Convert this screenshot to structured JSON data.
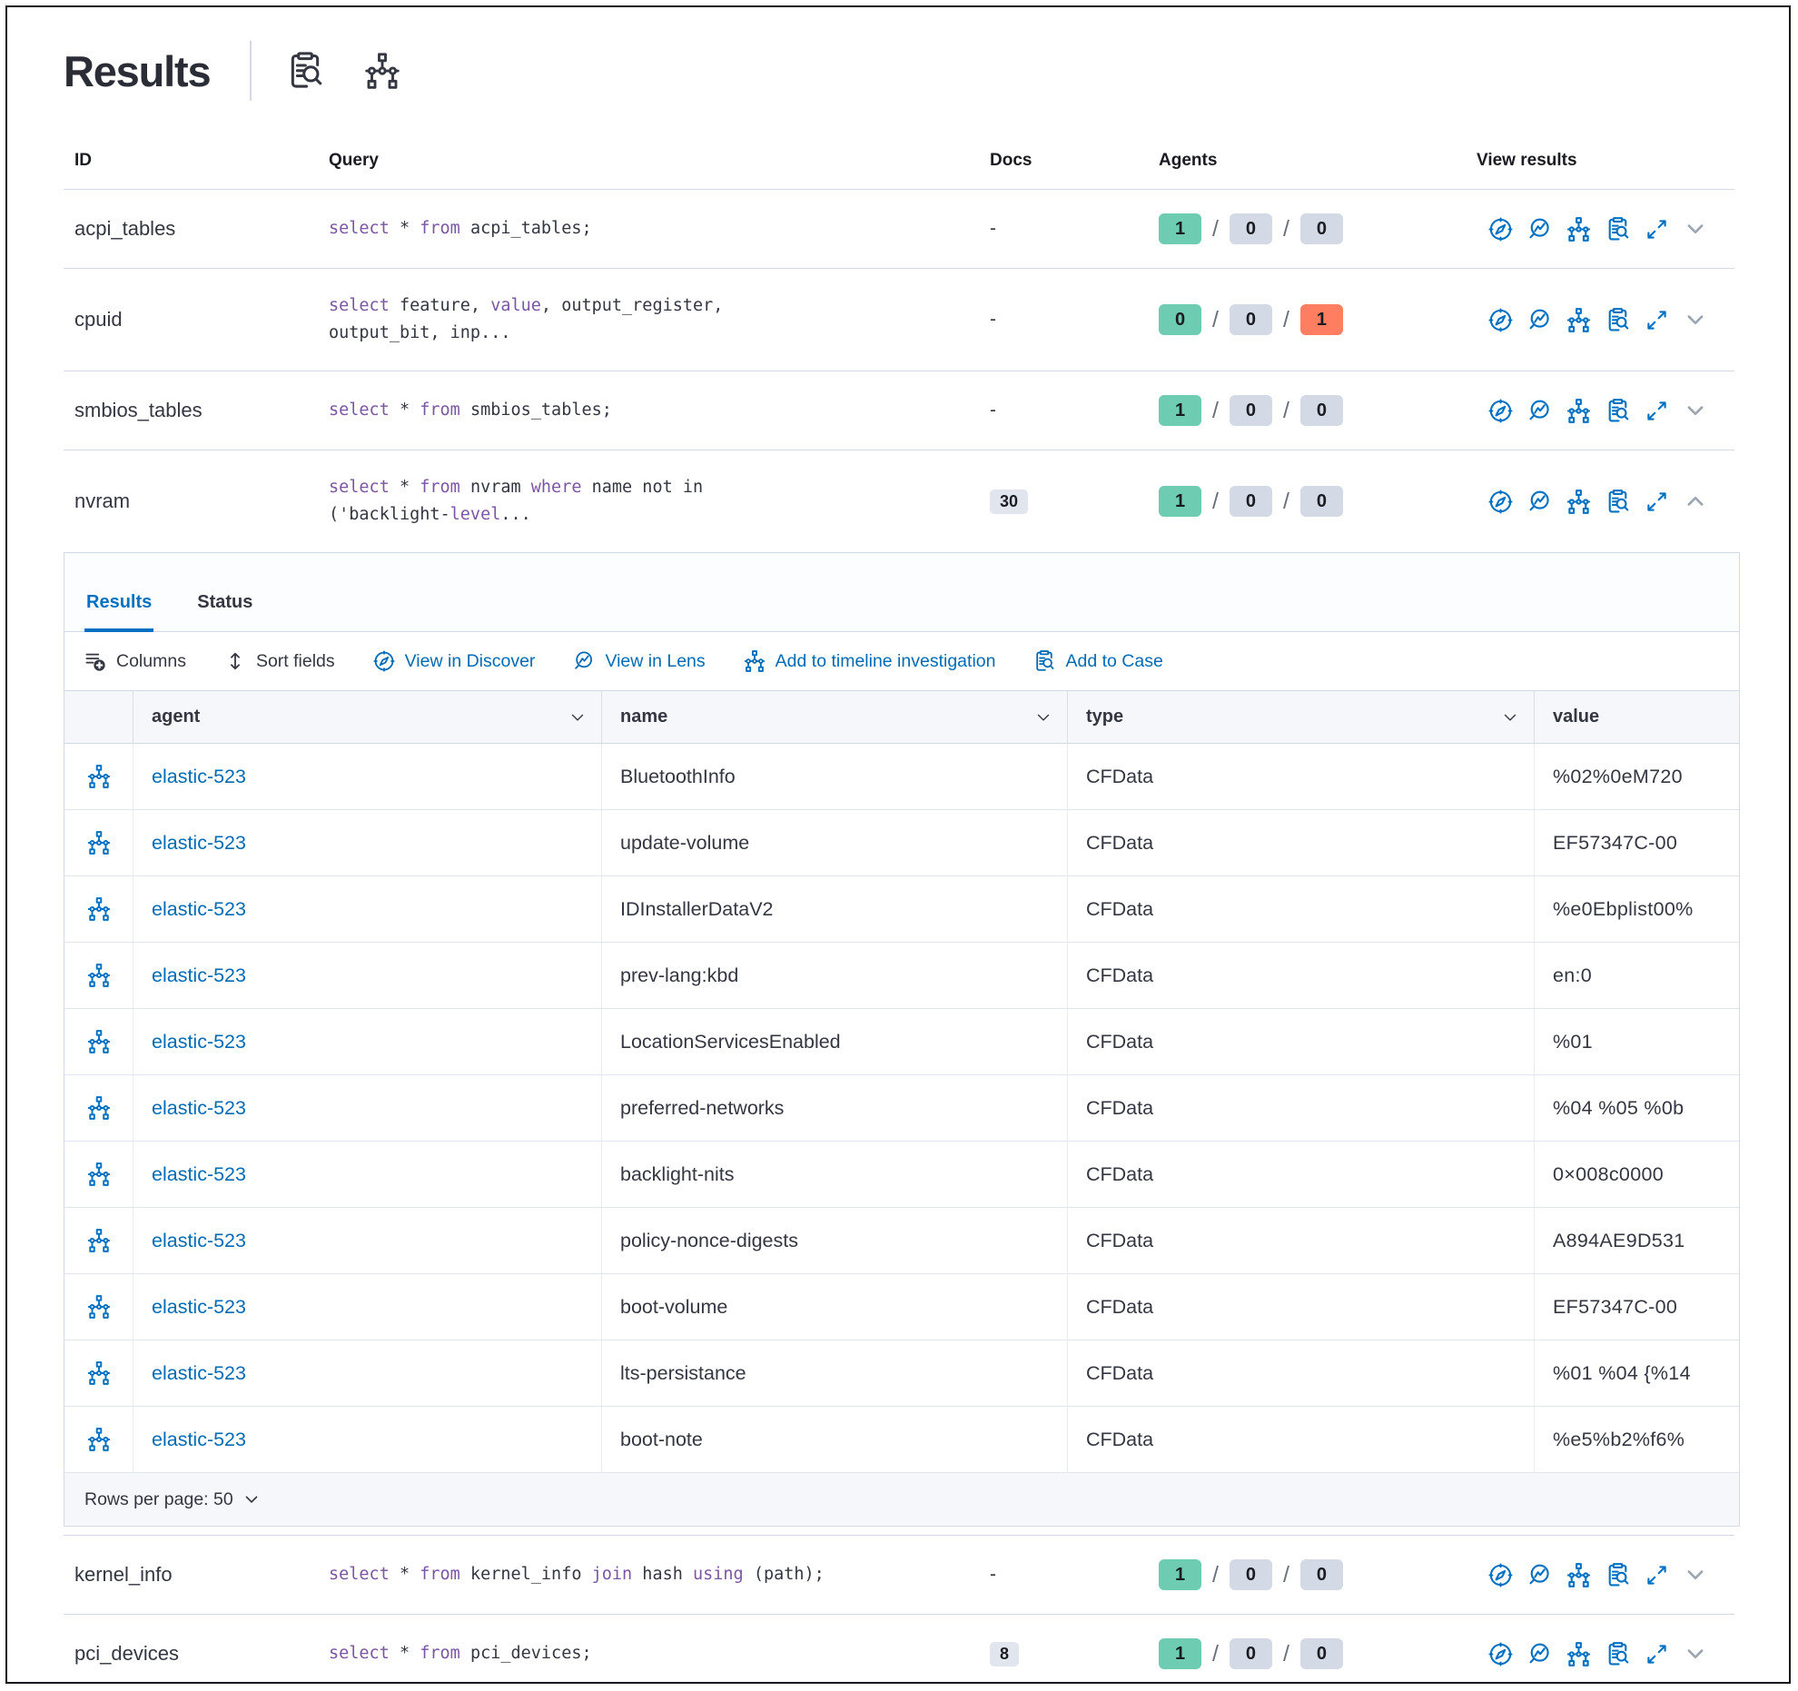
{
  "header": {
    "title": "Results",
    "icons": [
      {
        "name": "inspect-icon"
      },
      {
        "name": "timeline-icon"
      }
    ]
  },
  "colors": {
    "accent_blue": "#0071c2",
    "link_blue": "#006bb4",
    "keyword_purple": "#7a56a3",
    "badge_green": "#6dccb1",
    "badge_gray": "#d3dae6",
    "badge_red": "#ff7e62",
    "docs_badge_bg": "#e0e5ee",
    "border": "#d3dae6"
  },
  "outer_table": {
    "columns": [
      "ID",
      "Query",
      "Docs",
      "Agents",
      "View results"
    ],
    "rows": [
      {
        "id": "acpi_tables",
        "query": [
          {
            "t": "select",
            "k": true
          },
          {
            "t": " * "
          },
          {
            "t": "from",
            "k": true
          },
          {
            "t": " acpi_tables;"
          }
        ],
        "docs": "-",
        "docs_badge": false,
        "agents": [
          "1",
          "0",
          "0"
        ],
        "agent_colors": [
          "green",
          "gray",
          "gray"
        ],
        "expanded": false,
        "section": "top"
      },
      {
        "id": "cpuid",
        "query": [
          {
            "t": "select",
            "k": true
          },
          {
            "t": " feature, "
          },
          {
            "t": "value",
            "k": true
          },
          {
            "t": ", output_register,\noutput_bit, inp..."
          }
        ],
        "docs": "-",
        "docs_badge": false,
        "agents": [
          "0",
          "0",
          "1"
        ],
        "agent_colors": [
          "green",
          "gray",
          "red"
        ],
        "expanded": false,
        "section": "top"
      },
      {
        "id": "smbios_tables",
        "query": [
          {
            "t": "select",
            "k": true
          },
          {
            "t": " * "
          },
          {
            "t": "from",
            "k": true
          },
          {
            "t": " smbios_tables;"
          }
        ],
        "docs": "-",
        "docs_badge": false,
        "agents": [
          "1",
          "0",
          "0"
        ],
        "agent_colors": [
          "green",
          "gray",
          "gray"
        ],
        "expanded": false,
        "section": "top"
      },
      {
        "id": "nvram",
        "query": [
          {
            "t": "select",
            "k": true
          },
          {
            "t": " * "
          },
          {
            "t": "from",
            "k": true
          },
          {
            "t": " nvram "
          },
          {
            "t": "where",
            "k": true
          },
          {
            "t": " name not in\n('backlight-"
          },
          {
            "t": "level",
            "k": true
          },
          {
            "t": "..."
          }
        ],
        "docs": "30",
        "docs_badge": true,
        "agents": [
          "1",
          "0",
          "0"
        ],
        "agent_colors": [
          "green",
          "gray",
          "gray"
        ],
        "expanded": true,
        "section": "top"
      },
      {
        "id": "kernel_info",
        "query": [
          {
            "t": "select",
            "k": true
          },
          {
            "t": " * "
          },
          {
            "t": "from",
            "k": true
          },
          {
            "t": " kernel_info "
          },
          {
            "t": "join",
            "k": true
          },
          {
            "t": " hash "
          },
          {
            "t": "using",
            "k": true
          },
          {
            "t": " (path);"
          }
        ],
        "docs": "-",
        "docs_badge": false,
        "agents": [
          "1",
          "0",
          "0"
        ],
        "agent_colors": [
          "green",
          "gray",
          "gray"
        ],
        "expanded": false,
        "section": "bottom"
      },
      {
        "id": "pci_devices",
        "query": [
          {
            "t": "select",
            "k": true
          },
          {
            "t": " * "
          },
          {
            "t": "from",
            "k": true
          },
          {
            "t": " pci_devices;"
          }
        ],
        "docs": "8",
        "docs_badge": true,
        "agents": [
          "1",
          "0",
          "0"
        ],
        "agent_colors": [
          "green",
          "gray",
          "gray"
        ],
        "expanded": false,
        "section": "bottom"
      }
    ],
    "view_result_actions": [
      "view-in-discover",
      "view-in-lens",
      "add-to-timeline",
      "add-to-case",
      "expand-results"
    ]
  },
  "panel": {
    "tabs": [
      {
        "label": "Results",
        "active": true
      },
      {
        "label": "Status",
        "active": false
      }
    ],
    "toolbar": [
      {
        "label": "Columns",
        "icon": "columns",
        "style": "dark"
      },
      {
        "label": "Sort fields",
        "icon": "sort",
        "style": "dark"
      },
      {
        "label": "View in Discover",
        "icon": "compass",
        "style": "link"
      },
      {
        "label": "View in Lens",
        "icon": "lens",
        "style": "link"
      },
      {
        "label": "Add to timeline investigation",
        "icon": "timeline",
        "style": "link"
      },
      {
        "label": "Add to Case",
        "icon": "inspect",
        "style": "link"
      }
    ],
    "grid": {
      "columns": [
        "agent",
        "name",
        "type",
        "value"
      ],
      "rows": [
        {
          "agent": "elastic-523",
          "name": "BluetoothInfo",
          "type": "CFData",
          "value": "%02%0eM720"
        },
        {
          "agent": "elastic-523",
          "name": "update-volume",
          "type": "CFData",
          "value": "EF57347C-00"
        },
        {
          "agent": "elastic-523",
          "name": "IDInstallerDataV2",
          "type": "CFData",
          "value": "%e0Ebplist00%"
        },
        {
          "agent": "elastic-523",
          "name": "prev-lang:kbd",
          "type": "CFData",
          "value": "en:0"
        },
        {
          "agent": "elastic-523",
          "name": "LocationServicesEnabled",
          "type": "CFData",
          "value": "%01"
        },
        {
          "agent": "elastic-523",
          "name": "preferred-networks",
          "type": "CFData",
          "value": "%04 %05 %0b"
        },
        {
          "agent": "elastic-523",
          "name": "backlight-nits",
          "type": "CFData",
          "value": "0×008c0000"
        },
        {
          "agent": "elastic-523",
          "name": "policy-nonce-digests",
          "type": "CFData",
          "value": "A894AE9D531"
        },
        {
          "agent": "elastic-523",
          "name": "boot-volume",
          "type": "CFData",
          "value": "EF57347C-00"
        },
        {
          "agent": "elastic-523",
          "name": "lts-persistance",
          "type": "CFData",
          "value": "%01 %04 {%14"
        },
        {
          "agent": "elastic-523",
          "name": "boot-note",
          "type": "CFData",
          "value": "%e5%b2%f6%"
        }
      ]
    },
    "footer": {
      "rows_per_page_label": "Rows per page: 50"
    }
  }
}
